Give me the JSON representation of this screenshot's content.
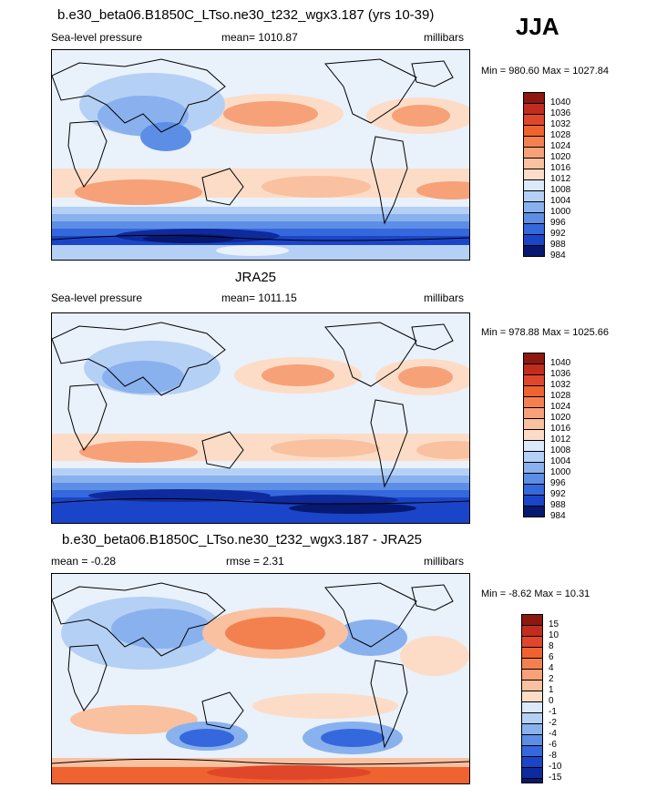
{
  "season": "JJA",
  "colors": {
    "pos": [
      "#fcdcc6",
      "#f9c1a0",
      "#f6a178",
      "#f3814f",
      "#ee6330",
      "#e0472a",
      "#c12c1f",
      "#8c1810"
    ],
    "neg": [
      "#dbe9fb",
      "#b5d0f5",
      "#89b1ee",
      "#5d8ee6",
      "#3568dc",
      "#1b45c9",
      "#0e2a9c",
      "#061870"
    ],
    "pale": "#e9f1fb"
  },
  "panels": [
    {
      "title": "b.e30_beta06.B1850C_LTso.ne30_t232_wgx3.187 (yrs 10-39)",
      "left": "Sea-level pressure",
      "center": "mean= 1010.87",
      "right": "millibars",
      "minmax": "Min = 980.60 Max = 1027.84",
      "colorbar": [
        "1040",
        "1036",
        "1032",
        "1028",
        "1024",
        "1020",
        "1016",
        "1012",
        "1008",
        "1004",
        "1000",
        "996",
        "992",
        "988",
        "984"
      ]
    },
    {
      "title": "JRA25",
      "left": "Sea-level pressure",
      "center": "mean= 1011.15",
      "right": "millibars",
      "minmax": "Min = 978.88 Max = 1025.66",
      "colorbar": [
        "1040",
        "1036",
        "1032",
        "1028",
        "1024",
        "1020",
        "1016",
        "1012",
        "1008",
        "1004",
        "1000",
        "996",
        "992",
        "988",
        "984"
      ]
    },
    {
      "title": "b.e30_beta06.B1850C_LTso.ne30_t232_wgx3.187 - JRA25",
      "left": "mean =  -0.28",
      "center": "rmse =   2.31",
      "right": "millibars",
      "minmax": "Min =  -8.62 Max =  10.31",
      "colorbar": [
        "15",
        "10",
        "8",
        "6",
        "4",
        "2",
        "1",
        "0",
        "-1",
        "-2",
        "-4",
        "-6",
        "-8",
        "-10",
        "-15"
      ]
    }
  ]
}
